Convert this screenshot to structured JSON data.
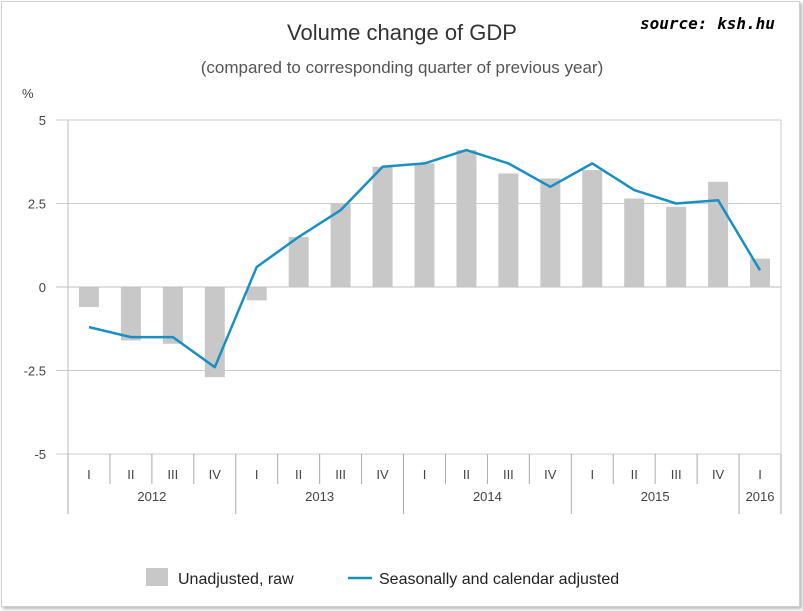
{
  "source_note": "source: ksh.hu",
  "chart_data": {
    "type": "bar",
    "title": "Volume change of GDP",
    "subtitle": "(compared to corresponding quarter of previous year)",
    "ylabel": "%",
    "ylim": [
      -5,
      5
    ],
    "yticks": [
      "5",
      "2.5",
      "0",
      "-2.5",
      "-5"
    ],
    "grid": true,
    "legend_placement": "bottom",
    "quarters": [
      "I",
      "II",
      "III",
      "IV",
      "I",
      "II",
      "III",
      "IV",
      "I",
      "II",
      "III",
      "IV",
      "I",
      "II",
      "III",
      "IV",
      "I"
    ],
    "years": [
      {
        "label": "2012",
        "span": 4
      },
      {
        "label": "2013",
        "span": 4
      },
      {
        "label": "2014",
        "span": 4
      },
      {
        "label": "2015",
        "span": 4
      },
      {
        "label": "2016",
        "span": 1
      }
    ],
    "series": [
      {
        "name": "Unadjusted, raw",
        "kind": "bar",
        "color": "#c8c8c8",
        "values": [
          -0.6,
          -1.6,
          -1.7,
          -2.7,
          -0.4,
          1.5,
          2.5,
          3.6,
          3.7,
          4.1,
          3.4,
          3.25,
          3.5,
          2.65,
          2.4,
          3.15,
          0.85
        ]
      },
      {
        "name": "Seasonally and calendar adjusted",
        "kind": "line",
        "color": "#1a8fc4",
        "values": [
          -1.2,
          -1.5,
          -1.5,
          -2.4,
          0.6,
          1.5,
          2.3,
          3.6,
          3.7,
          4.1,
          3.7,
          3.0,
          3.7,
          2.9,
          2.5,
          2.6,
          0.5
        ]
      }
    ]
  }
}
